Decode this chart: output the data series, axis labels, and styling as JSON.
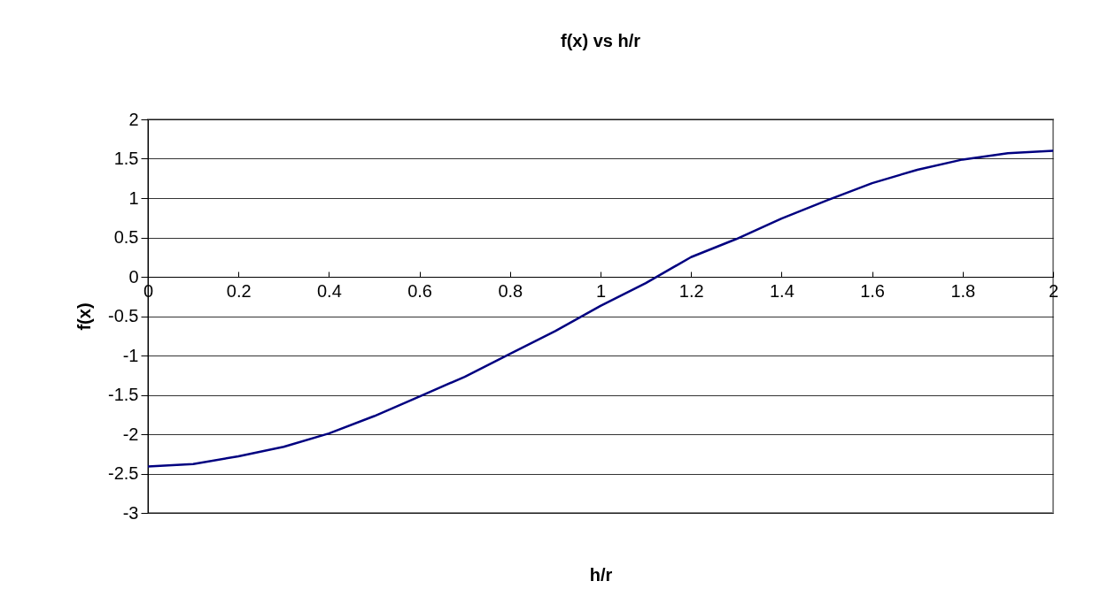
{
  "chart_data": {
    "type": "line",
    "title": "f(x) vs h/r",
    "xlabel": "h/r",
    "ylabel": "f(x)",
    "x": [
      0,
      0.1,
      0.2,
      0.3,
      0.4,
      0.5,
      0.6,
      0.7,
      0.8,
      0.9,
      1.0,
      1.1,
      1.2,
      1.3,
      1.4,
      1.5,
      1.6,
      1.7,
      1.8,
      1.9,
      2.0
    ],
    "series": [
      {
        "color": "#000080",
        "values": [
          -2.41,
          -2.38,
          -2.28,
          -2.16,
          -1.99,
          -1.77,
          -1.52,
          -1.27,
          -0.98,
          -0.69,
          -0.37,
          -0.08,
          0.25,
          0.48,
          0.74,
          0.97,
          1.19,
          1.36,
          1.49,
          1.57,
          1.6
        ]
      }
    ],
    "xlim": [
      0,
      2
    ],
    "xticks": [
      0,
      0.2,
      0.4,
      0.6,
      0.8,
      1,
      1.2,
      1.4,
      1.6,
      1.8,
      2
    ],
    "ylim": [
      -3,
      2
    ],
    "yticks": [
      -3,
      -2.5,
      -2,
      -1.5,
      -1,
      -0.5,
      0,
      0.5,
      1,
      1.5,
      2
    ],
    "grid": "y",
    "marker": "none",
    "line_style": "solid"
  }
}
